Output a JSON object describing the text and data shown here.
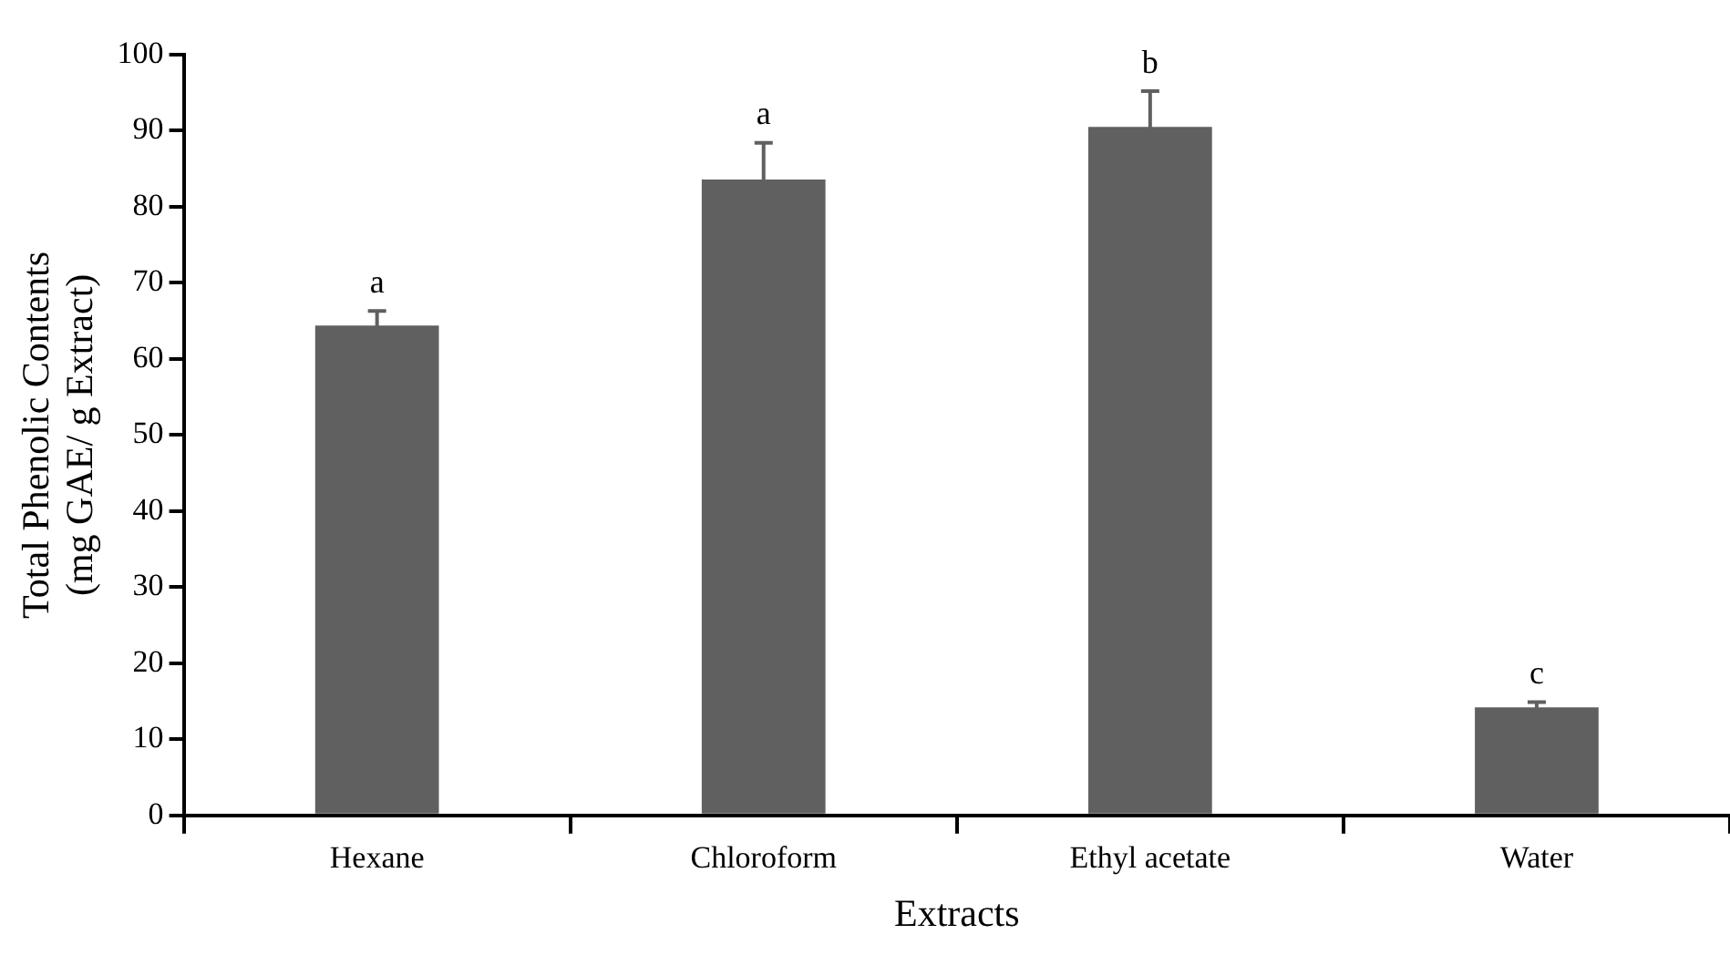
{
  "chart_data": {
    "type": "bar",
    "xlabel": "Extracts",
    "ylabel": "Total Phenolic Contents\n(mg GAE/ g Extract)",
    "categories": [
      "Hexane",
      "Chloroform",
      "Ethyl acetate",
      "Water"
    ],
    "values": [
      64.4,
      83.6,
      90.5,
      14.2
    ],
    "errors": [
      1.9,
      4.8,
      4.7,
      0.7
    ],
    "color": "#606060",
    "ylim": [
      0,
      100
    ],
    "yticks": [
      0,
      10,
      20,
      30,
      40,
      50,
      60,
      70,
      80,
      90,
      100
    ],
    "grid": false,
    "legend": false,
    "annotations": [
      {
        "text": "a",
        "x": "Hexane",
        "y": 66.3
      },
      {
        "text": "a",
        "x": "Chloroform",
        "y": 88.4
      },
      {
        "text": "b",
        "x": "Ethyl acetate",
        "y": 95.2
      },
      {
        "text": "c",
        "x": "Water",
        "y": 14.9
      }
    ]
  }
}
